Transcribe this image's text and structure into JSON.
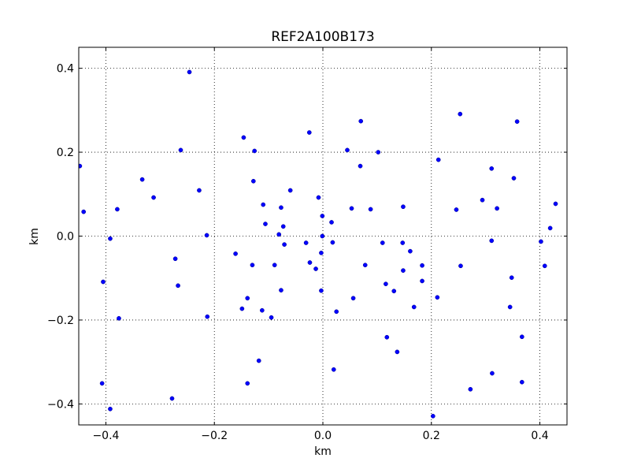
{
  "chart_data": {
    "type": "scatter",
    "title": "REF2A100B173",
    "xlabel": "km",
    "ylabel": "km",
    "xlim": [
      -0.45,
      0.45
    ],
    "ylim": [
      -0.45,
      0.45
    ],
    "xticks": [
      -0.4,
      -0.2,
      0.0,
      0.2,
      0.4
    ],
    "yticks": [
      -0.4,
      -0.2,
      0.0,
      0.2,
      0.4
    ],
    "xtick_labels": [
      "−0.4",
      "−0.2",
      "0.0",
      "0.2",
      "0.4"
    ],
    "ytick_labels": [
      "−0.4",
      "−0.2",
      "0.0",
      "0.2",
      "0.4"
    ],
    "grid": true,
    "marker_color": "#0000ff",
    "points": [
      [
        -0.448,
        0.167
      ],
      [
        -0.441,
        0.058
      ],
      [
        -0.392,
        -0.006
      ],
      [
        -0.379,
        0.064
      ],
      [
        -0.405,
        -0.109
      ],
      [
        -0.376,
        -0.196
      ],
      [
        -0.407,
        -0.351
      ],
      [
        -0.392,
        -0.412
      ],
      [
        -0.333,
        0.135
      ],
      [
        -0.312,
        0.092
      ],
      [
        -0.262,
        0.205
      ],
      [
        -0.228,
        0.109
      ],
      [
        -0.214,
        0.002
      ],
      [
        -0.272,
        -0.054
      ],
      [
        -0.267,
        -0.118
      ],
      [
        -0.213,
        -0.192
      ],
      [
        -0.278,
        -0.387
      ],
      [
        -0.246,
        0.391
      ],
      [
        -0.146,
        0.235
      ],
      [
        -0.126,
        0.203
      ],
      [
        -0.128,
        0.131
      ],
      [
        -0.11,
        0.075
      ],
      [
        -0.106,
        0.029
      ],
      [
        -0.077,
        0.068
      ],
      [
        -0.073,
        0.023
      ],
      [
        -0.081,
        0.004
      ],
      [
        -0.071,
        -0.02
      ],
      [
        -0.161,
        -0.042
      ],
      [
        -0.13,
        -0.069
      ],
      [
        -0.089,
        -0.069
      ],
      [
        -0.077,
        -0.129
      ],
      [
        -0.149,
        -0.173
      ],
      [
        -0.139,
        -0.148
      ],
      [
        -0.112,
        -0.177
      ],
      [
        -0.095,
        -0.194
      ],
      [
        -0.118,
        -0.297
      ],
      [
        -0.139,
        -0.351
      ],
      [
        -0.06,
        0.109
      ],
      [
        -0.025,
        0.247
      ],
      [
        -0.008,
        0.092
      ],
      [
        -0.001,
        0.048
      ],
      [
        -0.031,
        -0.016
      ],
      [
        -0.003,
        -0.04
      ],
      [
        -0.024,
        -0.063
      ],
      [
        -0.013,
        -0.078
      ],
      [
        -0.001,
        0.0
      ],
      [
        0.016,
        0.033
      ],
      [
        0.018,
        -0.015
      ],
      [
        -0.003,
        -0.13
      ],
      [
        0.025,
        -0.18
      ],
      [
        0.02,
        -0.318
      ],
      [
        0.045,
        0.205
      ],
      [
        0.053,
        0.066
      ],
      [
        0.07,
        0.274
      ],
      [
        0.069,
        0.167
      ],
      [
        0.088,
        0.064
      ],
      [
        0.102,
        0.2
      ],
      [
        0.11,
        -0.016
      ],
      [
        0.078,
        -0.069
      ],
      [
        0.056,
        -0.148
      ],
      [
        0.116,
        -0.114
      ],
      [
        0.131,
        -0.131
      ],
      [
        0.118,
        -0.241
      ],
      [
        0.137,
        -0.276
      ],
      [
        0.148,
        0.07
      ],
      [
        0.147,
        -0.016
      ],
      [
        0.148,
        -0.082
      ],
      [
        0.161,
        -0.036
      ],
      [
        0.183,
        -0.07
      ],
      [
        0.183,
        -0.107
      ],
      [
        0.168,
        -0.169
      ],
      [
        0.211,
        -0.146
      ],
      [
        0.213,
        0.182
      ],
      [
        0.203,
        -0.429
      ],
      [
        0.253,
        0.291
      ],
      [
        0.246,
        0.063
      ],
      [
        0.254,
        -0.071
      ],
      [
        0.272,
        -0.365
      ],
      [
        0.294,
        0.086
      ],
      [
        0.311,
        0.161
      ],
      [
        0.321,
        0.066
      ],
      [
        0.311,
        -0.011
      ],
      [
        0.312,
        -0.327
      ],
      [
        0.352,
        0.138
      ],
      [
        0.358,
        0.273
      ],
      [
        0.348,
        -0.099
      ],
      [
        0.345,
        -0.169
      ],
      [
        0.367,
        -0.24
      ],
      [
        0.367,
        -0.348
      ],
      [
        0.402,
        -0.013
      ],
      [
        0.409,
        -0.071
      ],
      [
        0.419,
        0.019
      ],
      [
        0.429,
        0.077
      ]
    ]
  }
}
